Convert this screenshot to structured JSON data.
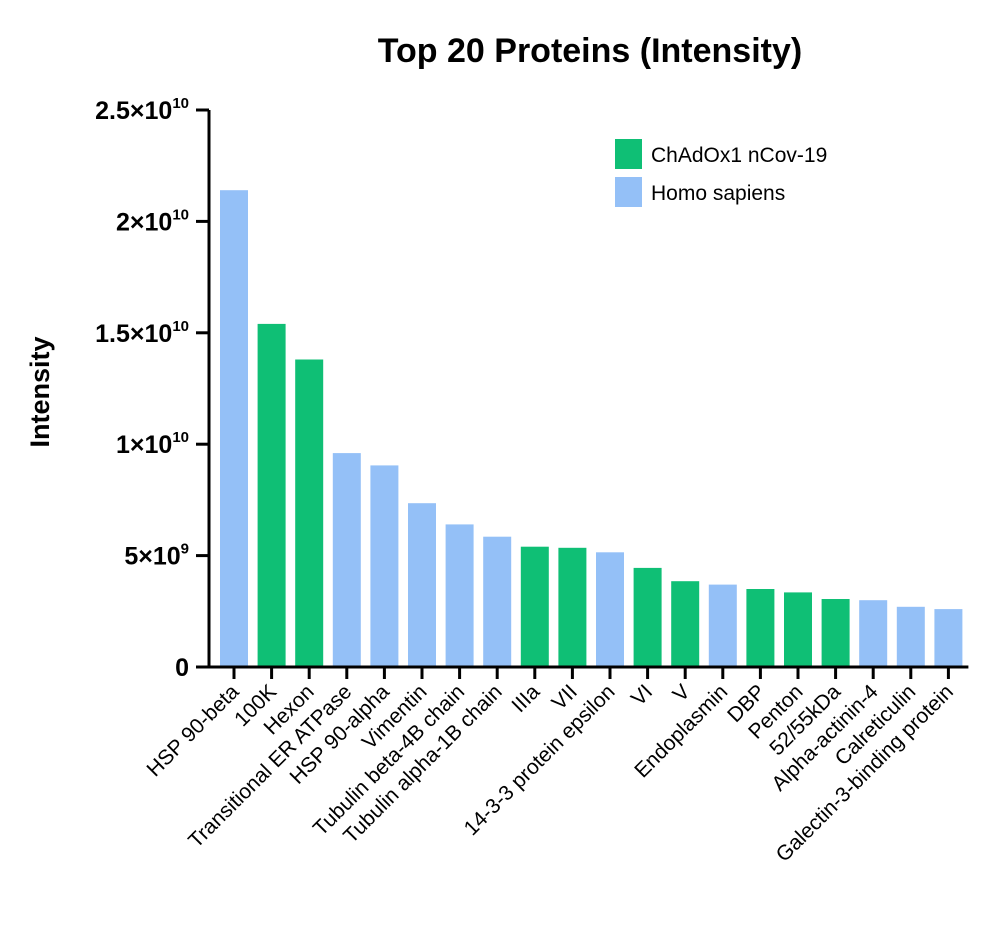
{
  "chart_data": {
    "type": "bar",
    "title": "Top 20 Proteins (Intensity)",
    "ylabel": "Intensity",
    "xlabel": "",
    "ylim": [
      0,
      25000000000
    ],
    "yticks": [
      {
        "value": 0,
        "base": "0",
        "exp": ""
      },
      {
        "value": 5000000000,
        "base": "5×10",
        "exp": "9"
      },
      {
        "value": 10000000000,
        "base": "1×10",
        "exp": "10"
      },
      {
        "value": 15000000000,
        "base": "1.5×10",
        "exp": "10"
      },
      {
        "value": 20000000000,
        "base": "2×10",
        "exp": "10"
      },
      {
        "value": 25000000000,
        "base": "2.5×10",
        "exp": "10"
      }
    ],
    "categories": [
      "HSP 90-beta",
      "100K",
      "Hexon",
      "Transitional ER ATPase",
      "HSP 90-alpha",
      "Vimentin",
      "Tubulin beta-4B chain",
      "Tubulin alpha-1B chain",
      "IIIa",
      "VII",
      "14-3-3 protein epsilon",
      "VI",
      "V",
      "Endoplasmin",
      "DBP",
      "Penton",
      "52/55kDa",
      "Alpha-actinin-4",
      "Calreticulin",
      "Galectin-3-binding protein"
    ],
    "values": [
      21400000000,
      15400000000,
      13800000000,
      9600000000,
      9050000000,
      7350000000,
      6400000000,
      5850000000,
      5400000000,
      5350000000,
      5150000000,
      4450000000,
      3850000000,
      3700000000,
      3500000000,
      3350000000,
      3050000000,
      3000000000,
      2700000000,
      2600000000
    ],
    "groups": [
      "Homo sapiens",
      "ChAdOx1 nCov-19",
      "ChAdOx1 nCov-19",
      "Homo sapiens",
      "Homo sapiens",
      "Homo sapiens",
      "Homo sapiens",
      "Homo sapiens",
      "ChAdOx1 nCov-19",
      "ChAdOx1 nCov-19",
      "Homo sapiens",
      "ChAdOx1 nCov-19",
      "ChAdOx1 nCov-19",
      "Homo sapiens",
      "ChAdOx1 nCov-19",
      "ChAdOx1 nCov-19",
      "ChAdOx1 nCov-19",
      "Homo sapiens",
      "Homo sapiens",
      "Homo sapiens"
    ],
    "legend": [
      {
        "name": "ChAdOx1 nCov-19",
        "color": "#0fbf75"
      },
      {
        "name": "Homo sapiens",
        "color": "#94c0f7"
      }
    ],
    "legend_position": "top-right",
    "grid": false
  }
}
